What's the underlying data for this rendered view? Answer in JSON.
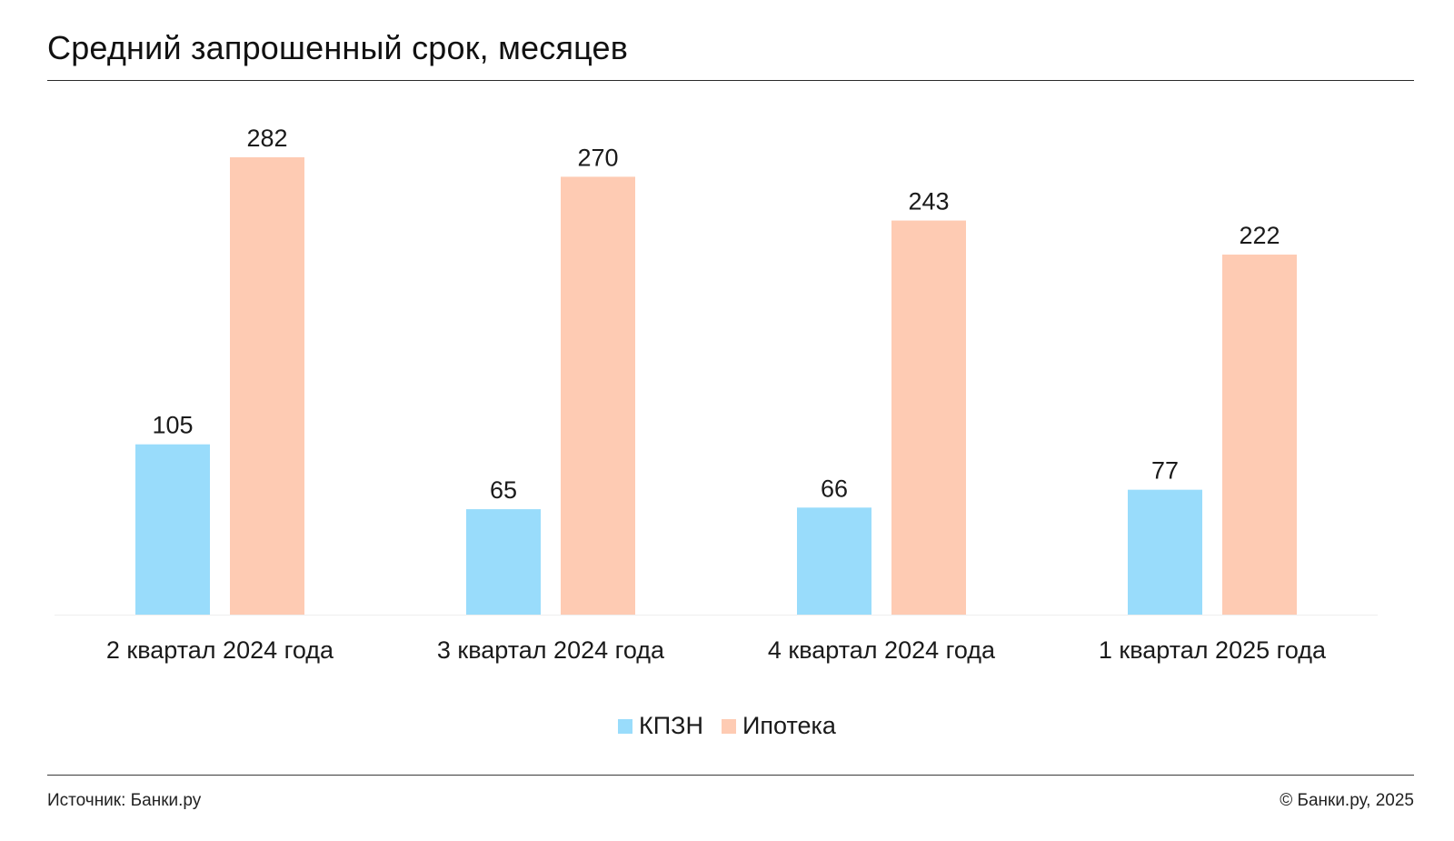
{
  "title": "Средний запрошенный срок, месяцев",
  "chart_data": {
    "type": "bar",
    "categories": [
      "2 квартал 2024 года",
      "3 квартал 2024 года",
      "4 квартал 2024 года",
      "1 квартал 2025 года"
    ],
    "series": [
      {
        "name": "КПЗН",
        "values": [
          105,
          65,
          66,
          77
        ],
        "color": "#99dcfb"
      },
      {
        "name": "Ипотека",
        "values": [
          282,
          270,
          243,
          222
        ],
        "color": "#fecbb3"
      }
    ],
    "ylim": [
      0,
      282
    ],
    "grid": false,
    "legend": "bottom-center",
    "data_labels": true
  },
  "legend": {
    "items": [
      {
        "label": "КПЗН",
        "color": "#99dcfb"
      },
      {
        "label": "Ипотека",
        "color": "#fecbb3"
      }
    ]
  },
  "footer": {
    "source": "Источник: Банки.ру",
    "copyright": "© Банки.ру, 2025"
  }
}
